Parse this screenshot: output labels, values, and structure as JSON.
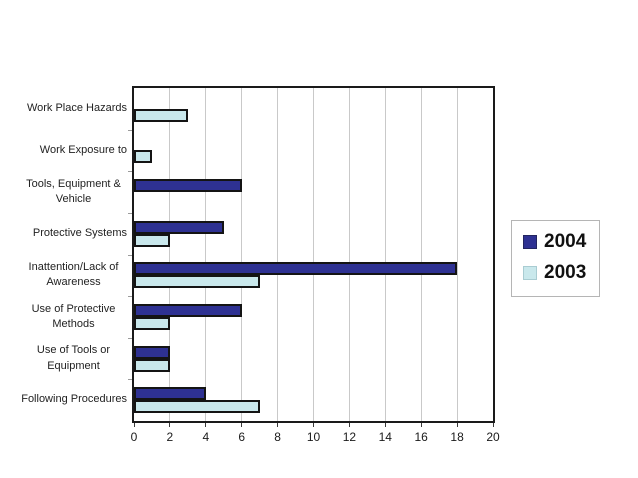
{
  "chart_data": {
    "type": "bar",
    "orientation": "horizontal",
    "title": "",
    "xlabel": "",
    "ylabel": "",
    "categories": [
      "Work Place Hazards",
      "Work Exposure to",
      "Tools, Equipment & Vehicle",
      "Protective Systems",
      "Inattention/Lack of Awareness",
      "Use of Protective Methods",
      "Use of Tools or Equipment",
      "Following Procedures"
    ],
    "series": [
      {
        "name": "2004",
        "color": "#2E3192",
        "values": [
          0,
          0,
          6,
          5,
          18,
          6,
          2,
          4
        ]
      },
      {
        "name": "2003",
        "color": "#C9E8EC",
        "values": [
          3,
          1,
          0,
          2,
          7,
          2,
          2,
          7
        ]
      }
    ],
    "xlim": [
      0,
      20
    ],
    "xticks": [
      0,
      2,
      4,
      6,
      8,
      10,
      12,
      14,
      16,
      18,
      20
    ],
    "grid": "vertical",
    "legend_position": "right"
  },
  "colors": {
    "background": "#ffffff",
    "plot_border": "#1a1a1a",
    "bar_border": "#141414",
    "gridline": "#c9c9c9",
    "legend_border": "#b5b5b5",
    "text": "#222222"
  }
}
